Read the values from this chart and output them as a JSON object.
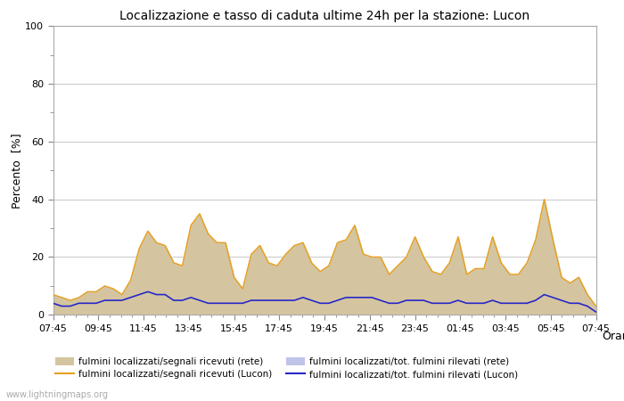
{
  "title": "Localizzazione e tasso di caduta ultime 24h per la stazione: Lucon",
  "xlabel": "Orario",
  "ylabel": "Percento  [%]",
  "ylim": [
    0,
    100
  ],
  "yticks": [
    0,
    20,
    40,
    60,
    80,
    100
  ],
  "watermark": "www.lightningmaps.org",
  "x_labels": [
    "07:45",
    "09:45",
    "11:45",
    "13:45",
    "15:45",
    "17:45",
    "19:45",
    "21:45",
    "23:45",
    "01:45",
    "03:45",
    "05:45",
    "07:45"
  ],
  "color_fill_rete": "#d4c5a0",
  "color_fill_lucon_area": "#c0c4e8",
  "color_line_lucon": "#e8a020",
  "color_line_lucon_tot": "#2828c8",
  "rete_signal": [
    7,
    6,
    5,
    6,
    8,
    8,
    10,
    9,
    7,
    12,
    23,
    29,
    25,
    24,
    18,
    17,
    31,
    35,
    28,
    25,
    25,
    13,
    9,
    21,
    24,
    18,
    17,
    21,
    24,
    25,
    18,
    15,
    17,
    25,
    26,
    31,
    21,
    20,
    20,
    14,
    17,
    20,
    27,
    20,
    15,
    14,
    18,
    27,
    14,
    16,
    16,
    27,
    18,
    14,
    14,
    18,
    26,
    40,
    26,
    13,
    11,
    13,
    7,
    3
  ],
  "rete_tot": [
    3,
    3,
    3,
    3,
    3,
    3,
    4,
    4,
    4,
    5,
    6,
    7,
    6,
    6,
    5,
    5,
    5,
    5,
    4,
    4,
    4,
    4,
    3,
    4,
    4,
    4,
    4,
    4,
    4,
    5,
    4,
    3,
    3,
    4,
    5,
    5,
    5,
    5,
    4,
    3,
    3,
    4,
    4,
    4,
    3,
    3,
    3,
    4,
    3,
    3,
    3,
    4,
    3,
    3,
    3,
    3,
    4,
    5,
    5,
    4,
    3,
    3,
    2,
    1
  ],
  "lucon_signal": [
    7,
    6,
    5,
    6,
    8,
    8,
    10,
    9,
    7,
    12,
    23,
    29,
    25,
    24,
    18,
    17,
    31,
    35,
    28,
    25,
    25,
    13,
    9,
    21,
    24,
    18,
    17,
    21,
    24,
    25,
    18,
    15,
    17,
    25,
    26,
    31,
    21,
    20,
    20,
    14,
    17,
    20,
    27,
    20,
    15,
    14,
    18,
    27,
    14,
    16,
    16,
    27,
    18,
    14,
    14,
    18,
    26,
    40,
    26,
    13,
    11,
    13,
    7,
    3
  ],
  "lucon_tot": [
    4,
    3,
    3,
    4,
    4,
    4,
    5,
    5,
    5,
    6,
    7,
    8,
    7,
    7,
    5,
    5,
    6,
    5,
    4,
    4,
    4,
    4,
    4,
    5,
    5,
    5,
    5,
    5,
    5,
    6,
    5,
    4,
    4,
    5,
    6,
    6,
    6,
    6,
    5,
    4,
    4,
    5,
    5,
    5,
    4,
    4,
    4,
    5,
    4,
    4,
    4,
    5,
    4,
    4,
    4,
    4,
    5,
    7,
    6,
    5,
    4,
    4,
    3,
    1
  ],
  "n_points": 64,
  "bg_color": "#f8f8f8",
  "plot_bg_color": "#ffffff",
  "minor_yticks": [
    10,
    30,
    50,
    70,
    90
  ]
}
